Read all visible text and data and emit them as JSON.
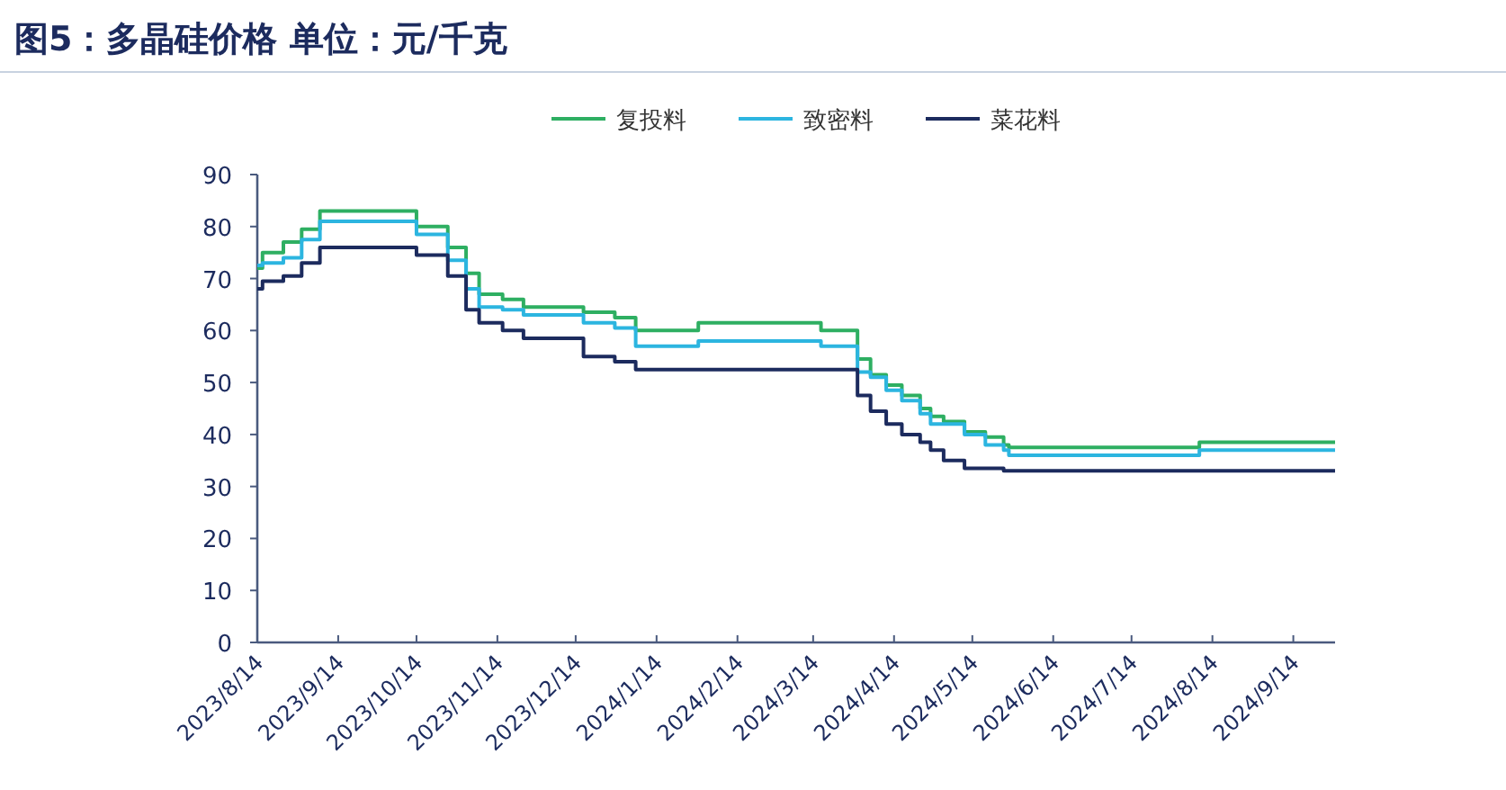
{
  "chart_data": {
    "type": "step",
    "title": "图5：多晶硅价格   单位：元/千克",
    "x": [
      "2023-08-14",
      "2023-08-16",
      "2023-08-24",
      "2023-08-31",
      "2023-09-07",
      "2023-10-14",
      "2023-10-26",
      "2023-11-02",
      "2023-11-07",
      "2023-11-16",
      "2023-11-24",
      "2023-12-17",
      "2023-12-29",
      "2024-01-06",
      "2024-01-30",
      "2024-03-17",
      "2024-03-31",
      "2024-04-05",
      "2024-04-11",
      "2024-04-17",
      "2024-04-24",
      "2024-04-28",
      "2024-05-03",
      "2024-05-11",
      "2024-05-19",
      "2024-05-26",
      "2024-05-28",
      "2024-06-06",
      "2024-08-09",
      "2024-09-30"
    ],
    "series": [
      {
        "name": "复投料",
        "color": "#2eaf62",
        "values": [
          72,
          75,
          77,
          79.5,
          83,
          80,
          76,
          71,
          67,
          66,
          64.5,
          63.5,
          62.5,
          60,
          61.5,
          60,
          54.5,
          51.5,
          49.5,
          47.5,
          45,
          43.5,
          42.5,
          40.5,
          39.5,
          38,
          37.5,
          37.5,
          38.5,
          38.5
        ]
      },
      {
        "name": "致密料",
        "color": "#2cb5e0",
        "values": [
          72.5,
          73,
          74,
          77.5,
          81,
          78.5,
          73.5,
          68,
          64.5,
          64,
          63,
          61.5,
          60.5,
          57,
          58,
          57,
          52,
          51,
          48.5,
          46.5,
          44,
          42,
          42,
          40,
          38,
          37,
          36,
          36,
          37,
          37
        ]
      },
      {
        "name": "菜花料",
        "color": "#1c2b5e",
        "values": [
          68,
          69.5,
          70.5,
          73,
          76,
          74.5,
          70.5,
          64,
          61.5,
          60,
          58.5,
          55,
          54,
          52.5,
          52.5,
          52.5,
          47.5,
          44.5,
          42,
          40,
          38.5,
          37,
          35,
          33.5,
          33.5,
          33,
          33,
          33,
          33,
          33
        ]
      }
    ],
    "xlim": [
      "2023-08-14",
      "2024-09-30"
    ],
    "xticks": [
      {
        "value": "2023-08-14",
        "label": "2023/8/14"
      },
      {
        "value": "2023-09-14",
        "label": "2023/9/14"
      },
      {
        "value": "2023-10-14",
        "label": "2023/10/14"
      },
      {
        "value": "2023-11-14",
        "label": "2023/11/14"
      },
      {
        "value": "2023-12-14",
        "label": "2023/12/14"
      },
      {
        "value": "2024-01-14",
        "label": "2024/1/14"
      },
      {
        "value": "2024-02-14",
        "label": "2024/2/14"
      },
      {
        "value": "2024-03-14",
        "label": "2024/3/14"
      },
      {
        "value": "2024-04-14",
        "label": "2024/4/14"
      },
      {
        "value": "2024-05-14",
        "label": "2024/5/14"
      },
      {
        "value": "2024-06-14",
        "label": "2024/6/14"
      },
      {
        "value": "2024-07-14",
        "label": "2024/7/14"
      },
      {
        "value": "2024-08-14",
        "label": "2024/8/14"
      },
      {
        "value": "2024-09-14",
        "label": "2024/9/14"
      }
    ],
    "ylim": [
      0,
      90
    ],
    "yticks": [
      0,
      10,
      20,
      30,
      40,
      50,
      60,
      70,
      80,
      90
    ],
    "grid": false,
    "legend": "top"
  }
}
